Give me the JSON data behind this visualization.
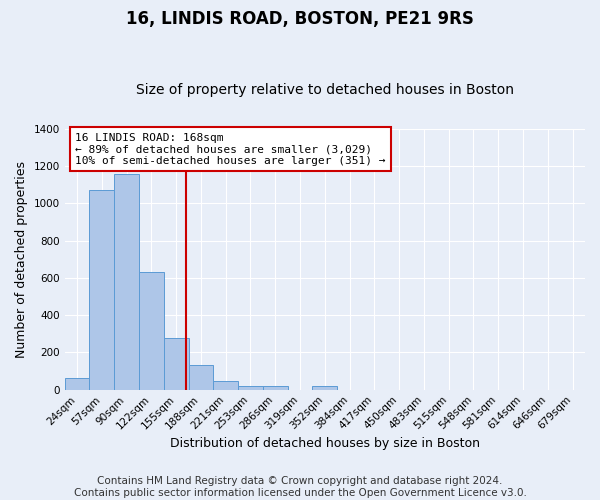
{
  "title": "16, LINDIS ROAD, BOSTON, PE21 9RS",
  "subtitle": "Size of property relative to detached houses in Boston",
  "xlabel": "Distribution of detached houses by size in Boston",
  "ylabel": "Number of detached properties",
  "footnote": "Contains HM Land Registry data © Crown copyright and database right 2024.\nContains public sector information licensed under the Open Government Licence v3.0.",
  "categories": [
    "24sqm",
    "57sqm",
    "90sqm",
    "122sqm",
    "155sqm",
    "188sqm",
    "221sqm",
    "253sqm",
    "286sqm",
    "319sqm",
    "352sqm",
    "384sqm",
    "417sqm",
    "450sqm",
    "483sqm",
    "515sqm",
    "548sqm",
    "581sqm",
    "614sqm",
    "646sqm",
    "679sqm"
  ],
  "values": [
    65,
    1070,
    1155,
    630,
    280,
    130,
    45,
    20,
    20,
    0,
    20,
    0,
    0,
    0,
    0,
    0,
    0,
    0,
    0,
    0,
    0
  ],
  "bar_color": "#aec6e8",
  "bar_edge_color": "#5b9bd5",
  "annotation_line1": "16 LINDIS ROAD: 168sqm",
  "annotation_line2": "← 89% of detached houses are smaller (3,029)",
  "annotation_line3": "10% of semi-detached houses are larger (351) →",
  "annotation_box_color": "#ffffff",
  "annotation_box_edge": "#cc0000",
  "red_line_color": "#cc0000",
  "ylim": [
    0,
    1400
  ],
  "background_color": "#e8eef8",
  "grid_color": "#ffffff",
  "title_fontsize": 12,
  "subtitle_fontsize": 10,
  "label_fontsize": 9,
  "footnote_fontsize": 7.5,
  "tick_fontsize": 7.5
}
